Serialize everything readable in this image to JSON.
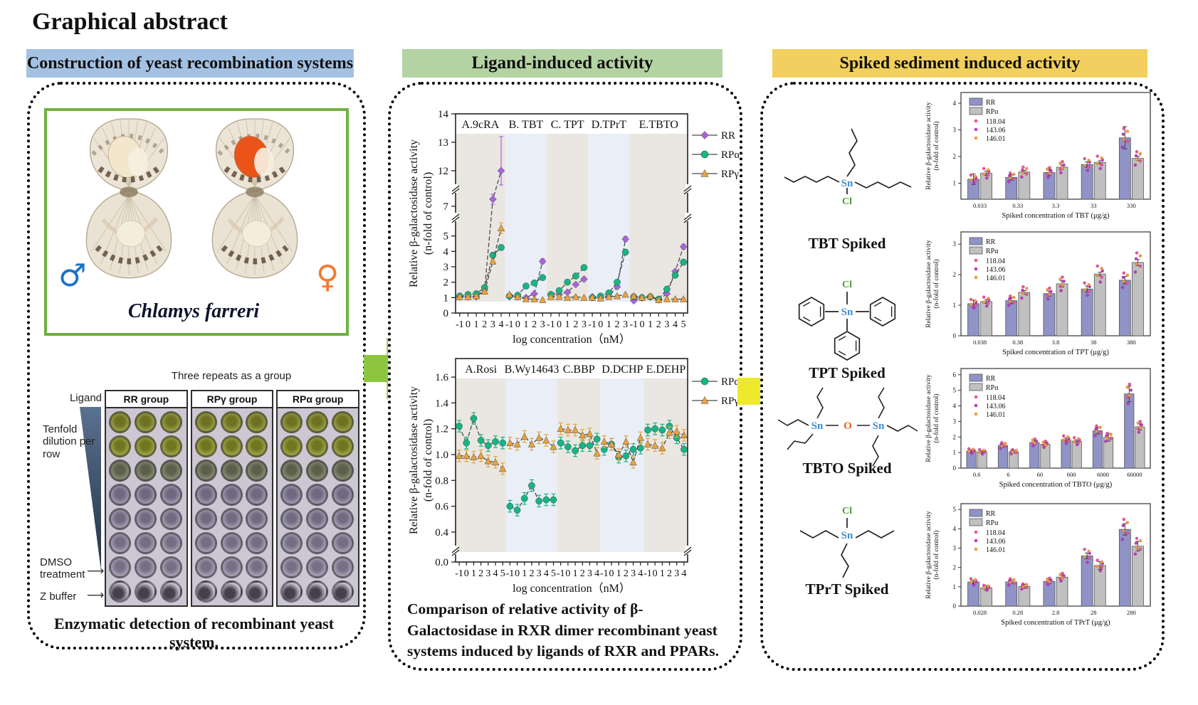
{
  "title": "Graphical abstract",
  "flow": {
    "arrow_left_color": "#8cc63e",
    "arrow_right_color": "#eeea2b"
  },
  "left_panel": {
    "header": "Construction of yeast recombination systems",
    "header_color": "#a3c1e3",
    "species_name": "Chlamys farreri",
    "male_symbol": "♂",
    "female_symbol": "♀",
    "male_color": "#1a72c8",
    "female_color": "#ed7d31",
    "plate_figure": {
      "top_note": "Three repeats as a group",
      "ligand_label": "Ligand",
      "dilution_label": "Tenfold dilution per row",
      "dmso_label": "DMSO treatment",
      "zbuffer_label": "Z buffer",
      "groups": [
        "RR group",
        "RPγ group",
        "RPα group"
      ],
      "rows": 8,
      "cols": 3
    },
    "caption": "Enzymatic detection of recombinant yeast system."
  },
  "middle_panel": {
    "header": "Ligand-induced activity",
    "header_color": "#b4d3a3",
    "caption": "Comparison of relative activity of β-Galactosidase in RXR dimer recombinant yeast systems induced by ligands of RXR and PPARs."
  },
  "right_panel": {
    "header": "Spiked sediment induced activity",
    "header_color": "#f2cf5e",
    "compounds": [
      {
        "label": "TBT  Spiked"
      },
      {
        "label": "TPT  Spiked"
      },
      {
        "label": "TBTO  Spiked"
      },
      {
        "label": "TPrT  Spiked"
      }
    ]
  },
  "chart_data": [
    {
      "id": "ligand_line_top",
      "type": "line",
      "xlabel": "log concentration（nM）",
      "ylabel": "Relative  β-galactosidase activity\n(n-fold of control)",
      "y_ticks": [
        0,
        1,
        2,
        3,
        4,
        5,
        7,
        12,
        13,
        14
      ],
      "ylim": [
        0,
        14
      ],
      "axis_break": true,
      "legend_position": "right",
      "legend": [
        {
          "name": "RR",
          "color": "#a963e0",
          "marker": "diamond"
        },
        {
          "name": "RPα",
          "color": "#15b585",
          "marker": "circle"
        },
        {
          "name": "RPγ",
          "color": "#eaa33b",
          "marker": "triangle"
        }
      ],
      "panels": [
        {
          "label": "A.9cRA",
          "x": [
            -1,
            0,
            1,
            2,
            3,
            4
          ],
          "series": {
            "RR": [
              1.05,
              1.05,
              1.05,
              1.5,
              7.5,
              12.0
            ],
            "RPα": [
              1.1,
              1.2,
              1.25,
              1.65,
              3.75,
              4.25
            ],
            "RPγ": [
              1.05,
              1.05,
              1.1,
              1.4,
              3.35,
              5.5
            ]
          }
        },
        {
          "label": "B. TBT",
          "x": [
            -1,
            0,
            1,
            2,
            3
          ],
          "series": {
            "RR": [
              1.05,
              1.05,
              1.0,
              1.25,
              3.35
            ],
            "RPα": [
              1.1,
              1.15,
              1.75,
              1.95,
              2.3
            ],
            "RPγ": [
              1.2,
              1.05,
              0.9,
              0.9,
              0.85
            ]
          }
        },
        {
          "label": "C. TPT",
          "x": [
            -1,
            0,
            1,
            2,
            3
          ],
          "series": {
            "RR": [
              1.2,
              1.2,
              1.35,
              1.85,
              2.2
            ],
            "RPα": [
              1.2,
              1.45,
              2.0,
              2.4,
              2.95
            ],
            "RPγ": [
              1.05,
              1.05,
              1.0,
              1.05,
              1.0
            ]
          }
        },
        {
          "label": "D.TPrT",
          "x": [
            -1,
            0,
            1,
            2,
            3
          ],
          "series": {
            "RR": [
              1.05,
              1.0,
              1.1,
              1.7,
              4.8
            ],
            "RPα": [
              1.0,
              1.1,
              1.3,
              2.0,
              3.95
            ],
            "RPγ": [
              1.0,
              0.95,
              1.05,
              1.1,
              1.2
            ]
          }
        },
        {
          "label": "E.TBTO",
          "x": [
            -1,
            0,
            1,
            2,
            3,
            4,
            5
          ],
          "series": {
            "RR": [
              0.8,
              1.0,
              1.05,
              0.85,
              1.25,
              2.7,
              4.3
            ],
            "RPα": [
              1.05,
              1.0,
              1.05,
              0.9,
              1.55,
              2.45,
              3.3
            ],
            "RPγ": [
              1.1,
              1.0,
              1.1,
              0.85,
              0.9,
              0.9,
              0.9
            ]
          }
        }
      ]
    },
    {
      "id": "ligand_line_bottom",
      "type": "line",
      "xlabel": "log concentration（nM）",
      "ylabel": "Relative  β-galactosidase activity\n(n-fold of control)",
      "y_ticks": [
        0.0,
        0.4,
        0.6,
        0.8,
        1.0,
        1.2,
        1.4,
        1.6
      ],
      "ylim": [
        0,
        1.6
      ],
      "axis_break": true,
      "legend_position": "right",
      "legend": [
        {
          "name": "RPα",
          "color": "#15b585",
          "marker": "circle"
        },
        {
          "name": "RPγ",
          "color": "#eaa33b",
          "marker": "triangle"
        }
      ],
      "panels": [
        {
          "label": "A.Rosi",
          "x": [
            -1,
            0,
            1,
            2,
            3,
            4,
            5
          ],
          "series": {
            "RPα": [
              1.22,
              1.09,
              1.28,
              1.11,
              1.07,
              1.1,
              1.09
            ],
            "RPγ": [
              0.99,
              0.99,
              0.98,
              0.99,
              0.95,
              0.94,
              0.89
            ]
          }
        },
        {
          "label": "B.Wy14643",
          "x": [
            -1,
            0,
            1,
            2,
            3,
            4,
            5
          ],
          "series": {
            "RPα": [
              0.6,
              0.57,
              0.66,
              0.76,
              0.64,
              0.65,
              0.65
            ],
            "RPγ": [
              1.09,
              1.08,
              1.14,
              1.08,
              1.13,
              1.11,
              1.06
            ]
          }
        },
        {
          "label": "C.BBP",
          "x": [
            -1,
            0,
            1,
            2,
            3,
            4
          ],
          "series": {
            "RPα": [
              1.09,
              1.06,
              1.03,
              1.07,
              1.07,
              1.12
            ],
            "RPγ": [
              1.2,
              1.19,
              1.19,
              1.15,
              1.16,
              1.01
            ]
          }
        },
        {
          "label": "D.DCHP",
          "x": [
            -1,
            0,
            1,
            2,
            3,
            4
          ],
          "series": {
            "RPα": [
              1.04,
              1.08,
              0.98,
              0.99,
              1.04,
              1.05
            ],
            "RPγ": [
              1.1,
              1.08,
              1.0,
              1.1,
              0.94,
              1.13
            ]
          }
        },
        {
          "label": "E.DEHP",
          "x": [
            -1,
            0,
            1,
            2,
            3,
            4
          ],
          "series": {
            "RPα": [
              1.19,
              1.2,
              1.19,
              1.22,
              1.13,
              1.04
            ],
            "RPγ": [
              1.08,
              1.07,
              1.05,
              1.17,
              1.18,
              1.15
            ]
          }
        }
      ]
    },
    {
      "id": "tbt_bar",
      "type": "bar",
      "categories": [
        "0.033",
        "0.33",
        "3.3",
        "33",
        "330"
      ],
      "xlabel": "Spiked concentration of TBT (μg/g)",
      "ylabel": "Relative  β-galactosidase activity\n(n-fold of control)",
      "y_ticks": [
        1,
        2,
        3,
        4
      ],
      "ylim": [
        0.4,
        4.4
      ],
      "series": [
        {
          "name": "RR",
          "color": "#8f93c6",
          "values": [
            1.15,
            1.22,
            1.4,
            1.7,
            2.7
          ],
          "errors": [
            0.2,
            0.1,
            0.12,
            0.1,
            0.42
          ]
        },
        {
          "name": "RPα",
          "color": "#c0c0c0",
          "values": [
            1.37,
            1.42,
            1.6,
            1.78,
            1.93
          ],
          "errors": [
            0.08,
            0.06,
            0.08,
            0.06,
            0.08
          ]
        }
      ],
      "dot_series": [
        {
          "label": "118.04",
          "color": "#f0509e"
        },
        {
          "label": "143.06",
          "color": "#c238c8"
        },
        {
          "label": "146.01",
          "color": "#f59a3c"
        }
      ]
    },
    {
      "id": "tpt_bar",
      "type": "bar",
      "categories": [
        "0.038",
        "0.38",
        "3.8",
        "38",
        "380"
      ],
      "xlabel": "Spiked concentration of TPT (μg/g)",
      "ylabel": "Relative  β-galactosidase activity\n(n-fold of control)",
      "y_ticks": [
        0,
        1,
        2,
        3
      ],
      "ylim": [
        0,
        3.4
      ],
      "series": [
        {
          "name": "RR",
          "color": "#8f93c6",
          "values": [
            1.05,
            1.15,
            1.38,
            1.53,
            1.82
          ],
          "errors": [
            0.12,
            0.1,
            0.08,
            0.1,
            0.12
          ]
        },
        {
          "name": "RPα",
          "color": "#c0c0c0",
          "values": [
            1.12,
            1.42,
            1.7,
            2.02,
            2.4
          ],
          "errors": [
            0.06,
            0.06,
            0.1,
            0.06,
            0.1
          ]
        }
      ],
      "dot_series": [
        {
          "label": "118.04",
          "color": "#f0509e"
        },
        {
          "label": "143.06",
          "color": "#c238c8"
        },
        {
          "label": "146.01",
          "color": "#f59a3c"
        }
      ]
    },
    {
      "id": "tbto_bar",
      "type": "bar",
      "categories": [
        "0.6",
        "6",
        "60",
        "600",
        "6000",
        "60000"
      ],
      "xlabel": "Spiked concentration of TBTO (μg/g)",
      "ylabel": "Relative  β-galactosidase activity\n(n-fold of control)",
      "y_ticks": [
        0,
        1,
        2,
        3,
        4,
        5,
        6
      ],
      "ylim": [
        0,
        6.4
      ],
      "series": [
        {
          "name": "RR",
          "color": "#8f93c6",
          "values": [
            1.1,
            1.45,
            1.65,
            1.83,
            2.4,
            4.77
          ],
          "errors": [
            0.08,
            0.1,
            0.1,
            0.1,
            0.2,
            0.5
          ]
        },
        {
          "name": "RPα",
          "color": "#c0c0c0",
          "values": [
            1.05,
            1.05,
            1.53,
            1.73,
            1.98,
            2.65
          ],
          "errors": [
            0.06,
            0.08,
            0.08,
            0.08,
            0.25,
            0.2
          ]
        }
      ],
      "dot_series": [
        {
          "label": "118.04",
          "color": "#f0509e"
        },
        {
          "label": "143.06",
          "color": "#c238c8"
        },
        {
          "label": "146.01",
          "color": "#f59a3c"
        }
      ]
    },
    {
      "id": "tprt_bar",
      "type": "bar",
      "categories": [
        "0.028",
        "0.28",
        "2.8",
        "28",
        "280"
      ],
      "xlabel": "Spiked concentration of TPrT (μg/g)",
      "ylabel": "Relative  β-galactosidase activity\n(n-fold of control)",
      "y_ticks": [
        0,
        1,
        2,
        3,
        4,
        5
      ],
      "ylim": [
        0,
        5.3
      ],
      "series": [
        {
          "name": "RR",
          "color": "#8f93c6",
          "values": [
            1.25,
            1.25,
            1.28,
            2.6,
            3.97
          ],
          "errors": [
            0.08,
            0.08,
            0.1,
            0.15,
            0.3
          ]
        },
        {
          "name": "RPα",
          "color": "#c0c0c0",
          "values": [
            0.95,
            1.02,
            1.5,
            2.1,
            3.1
          ],
          "errors": [
            0.12,
            0.1,
            0.08,
            0.2,
            0.25
          ]
        }
      ],
      "dot_series": [
        {
          "label": "118.04",
          "color": "#f0509e"
        },
        {
          "label": "143.06",
          "color": "#c238c8"
        },
        {
          "label": "146.01",
          "color": "#f59a3c"
        }
      ]
    }
  ]
}
